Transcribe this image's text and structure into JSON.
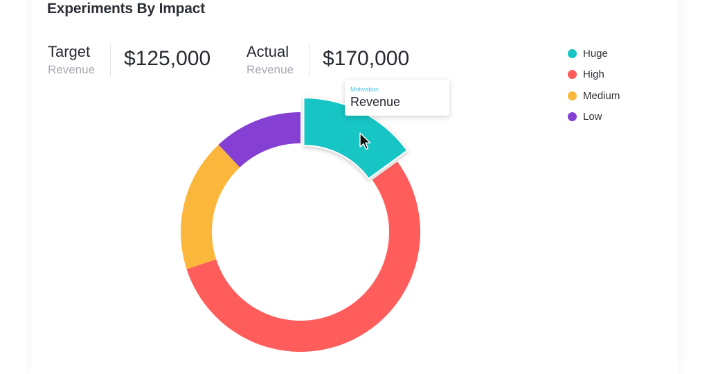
{
  "title": "Experiments By Impact",
  "metrics": [
    {
      "label": "Target",
      "sublabel": "Revenue",
      "value": "$125,000"
    },
    {
      "label": "Actual",
      "sublabel": "Revenue",
      "value": "$170,000"
    }
  ],
  "tooltip": {
    "category": "Motivation",
    "value": "Revenue"
  },
  "chart_data": {
    "type": "pie",
    "donut": true,
    "legend_position": "top-right",
    "categories": [
      "Huge",
      "High",
      "Medium",
      "Low"
    ],
    "values": [
      15,
      55,
      18,
      12
    ],
    "colors": [
      "#19c5c4",
      "#ff5c5c",
      "#fbb73c",
      "#8540d3"
    ],
    "highlighted": "Huge"
  }
}
